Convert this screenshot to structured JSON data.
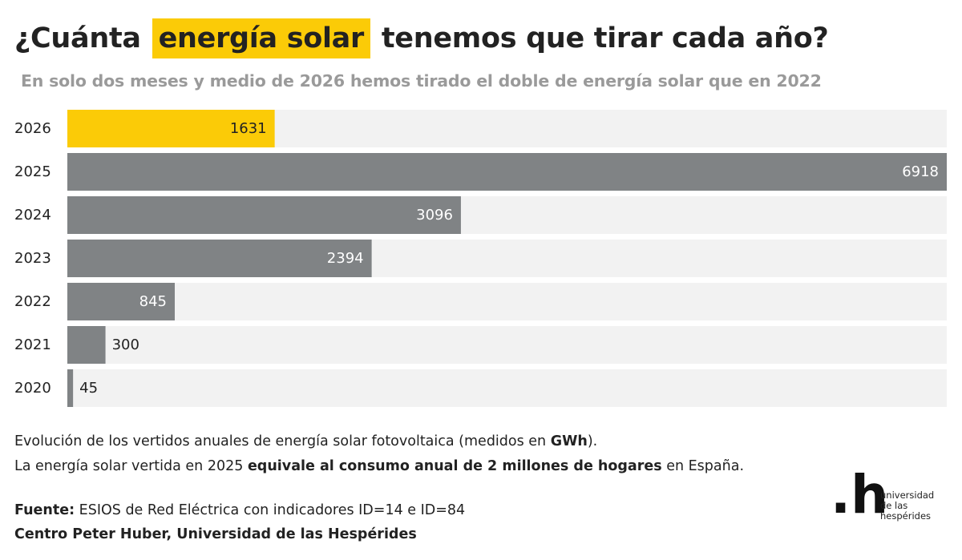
{
  "header": {
    "title_before": "¿Cuánta",
    "title_highlight": "energía solar",
    "title_after": "tenemos que tirar cada año?",
    "subtitle": "En solo dos meses y medio de 2026 hemos tirado el doble de energía solar que en 2022"
  },
  "chart_data": {
    "type": "bar",
    "orientation": "horizontal",
    "categories": [
      "2026",
      "2025",
      "2024",
      "2023",
      "2022",
      "2021",
      "2020"
    ],
    "values": [
      1631,
      6918,
      3096,
      2394,
      845,
      300,
      45
    ],
    "xlim": [
      0,
      6918
    ],
    "highlight_category": "2026",
    "colors": {
      "highlight": "#fbcb07",
      "bar": "#808385",
      "track": "#f2f2f2"
    },
    "grid": false,
    "legend": "none"
  },
  "caption": {
    "line1_before": "Evolución de los vertidos anuales de energía solar fotovoltaica (medidos en ",
    "line1_bold": "GWh",
    "line1_after": ").",
    "line2_before": "La energía solar vertida en 2025 ",
    "line2_bold": "equivale al consumo anual de 2 millones de hogares",
    "line2_after": " en España."
  },
  "source": {
    "label": "Fuente:",
    "text": " ESIOS de Red Eléctrica con indicadores ID=14 e ID=84",
    "credit": "Centro Peter Huber, Universidad de las Hespérides"
  },
  "logo": {
    "mark": ".h",
    "line1": "universidad",
    "line2": "de las",
    "line3": "hespérides"
  }
}
